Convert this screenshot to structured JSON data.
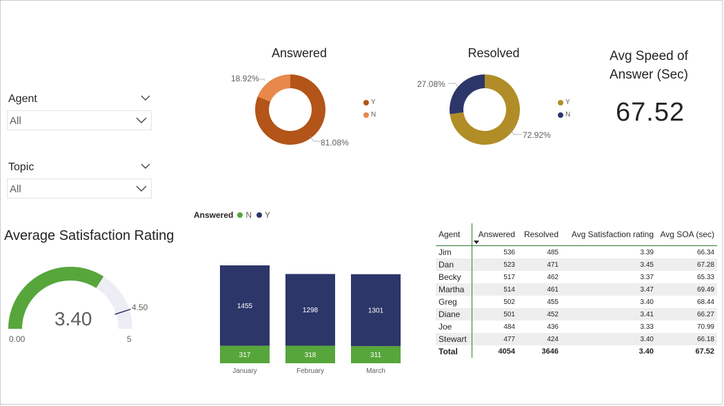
{
  "slicers": [
    {
      "title": "Agent",
      "value": "All"
    },
    {
      "title": "Topic",
      "value": "All"
    }
  ],
  "answered": {
    "title": "Answered",
    "segments": [
      {
        "label": "Y",
        "pct": 81.08,
        "pct_text": "81.08%",
        "color": "#B35418"
      },
      {
        "label": "N",
        "pct": 18.92,
        "pct_text": "18.92%",
        "color": "#E8894B"
      }
    ]
  },
  "resolved": {
    "title": "Resolved",
    "segments": [
      {
        "label": "Y",
        "pct": 72.92,
        "pct_text": "72.92%",
        "color": "#B08D26"
      },
      {
        "label": "N",
        "pct": 27.08,
        "pct_text": "27.08%",
        "color": "#2D3669"
      }
    ]
  },
  "speed_card": {
    "title_line1": "Avg Speed of",
    "title_line2": "Answer (Sec)",
    "value": "67.52"
  },
  "gauge": {
    "title": "Average Satisfaction Rating",
    "value": 3.4,
    "value_text": "3.40",
    "min_text": "0.00",
    "max_text": "5",
    "target": 4.5,
    "target_text": "4.50",
    "min": 0,
    "max": 5,
    "fill_color": "#57A63B",
    "track_color": "#EDEDF5",
    "target_color": "#2D3669"
  },
  "chart_data": {
    "type": "bar",
    "stacked": true,
    "legend_title": "Answered",
    "categories": [
      "January",
      "February",
      "March"
    ],
    "series": [
      {
        "name": "N",
        "values": [
          317,
          318,
          311
        ],
        "color": "#57A63B"
      },
      {
        "name": "Y",
        "values": [
          1455,
          1298,
          1301
        ],
        "color": "#2D3669"
      }
    ],
    "value_labels": {
      "N": [
        "317",
        "318",
        "311"
      ],
      "Y": [
        "1455",
        "1298",
        "1301"
      ]
    }
  },
  "table": {
    "headers": [
      "Agent",
      "Answered",
      "Resolved",
      "Avg Satisfaction rating",
      "Avg SOA (sec)"
    ],
    "rows": [
      [
        "Jim",
        "536",
        "485",
        "3.39",
        "66.34"
      ],
      [
        "Dan",
        "523",
        "471",
        "3.45",
        "67.28"
      ],
      [
        "Becky",
        "517",
        "462",
        "3.37",
        "65.33"
      ],
      [
        "Martha",
        "514",
        "461",
        "3.47",
        "69.49"
      ],
      [
        "Greg",
        "502",
        "455",
        "3.40",
        "68.44"
      ],
      [
        "Diane",
        "501",
        "452",
        "3.41",
        "66.27"
      ],
      [
        "Joe",
        "484",
        "436",
        "3.33",
        "70.99"
      ],
      [
        "Stewart",
        "477",
        "424",
        "3.40",
        "66.18"
      ]
    ],
    "total": [
      "Total",
      "4054",
      "3646",
      "3.40",
      "67.52"
    ]
  }
}
